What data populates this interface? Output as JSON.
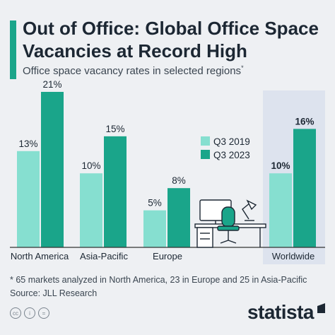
{
  "header": {
    "title": "Out of Office: Global Office Space Vacancies at Record High",
    "subtitle": "Office space vacancy rates in selected regions",
    "subtitle_mark": "*"
  },
  "colors": {
    "q3_2019": "#86dfd0",
    "q3_2023": "#1aa58a",
    "highlight_panel": "#dde3ee",
    "text": "#1c2733",
    "axis": "#333333"
  },
  "chart_data": {
    "type": "bar",
    "categories": [
      "North America",
      "Asia-Pacific",
      "Europe",
      "Worldwide"
    ],
    "series": [
      {
        "name": "Q3 2019",
        "values": [
          13,
          10,
          5,
          10
        ]
      },
      {
        "name": "Q3 2023",
        "values": [
          21,
          15,
          8,
          16
        ]
      }
    ],
    "data_labels": [
      [
        "13%",
        "21%"
      ],
      [
        "10%",
        "15%"
      ],
      [
        "5%",
        "8%"
      ],
      [
        "10%",
        "16%"
      ]
    ],
    "ylim": [
      0,
      23
    ],
    "grid": false,
    "legend": "top-center",
    "highlight_category": "Worldwide",
    "title": "",
    "xlabel": "",
    "ylabel": ""
  },
  "illustration": "office-desk-illustration",
  "footer": {
    "note": "* 65 markets analyzed in North America, 23 in Europe and 25 in Asia-Pacific",
    "source": "Source: JLL Research",
    "license_icons": [
      "cc-icon",
      "by-icon",
      "nd-icon"
    ],
    "brand": "statista"
  }
}
